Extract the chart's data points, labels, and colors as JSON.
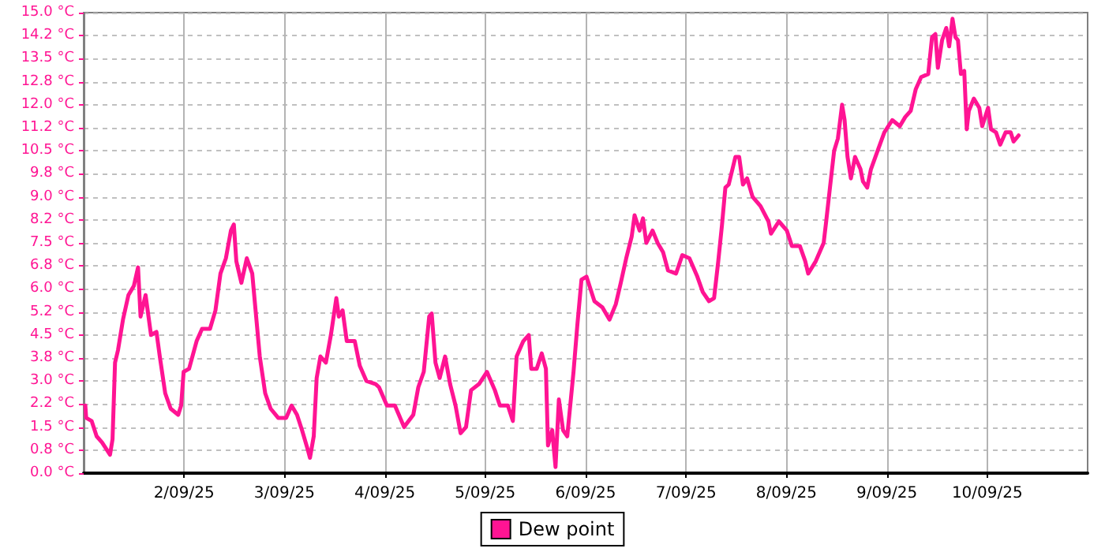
{
  "chart_data": {
    "type": "line",
    "xlim": [
      "--09-01T00:00",
      "--09-11T00:00"
    ],
    "xticks": [
      {
        "value": "--09-02T00:00",
        "label": "2/09/25"
      },
      {
        "value": "--09-03T00:00",
        "label": "3/09/25"
      },
      {
        "value": "--09-04T00:00",
        "label": "4/09/25"
      },
      {
        "value": "--09-05T00:00",
        "label": "5/09/25"
      },
      {
        "value": "--09-06T00:00",
        "label": "6/09/25"
      },
      {
        "value": "--09-07T00:00",
        "label": "7/09/25"
      },
      {
        "value": "--09-08T00:00",
        "label": "8/09/25"
      },
      {
        "value": "--09-09T00:00",
        "label": "9/09/25"
      },
      {
        "value": "--09-10T00:00",
        "label": "10/09/25"
      }
    ],
    "ylim": [
      0,
      15
    ],
    "yticks": [
      {
        "value": 0,
        "label": "0.0 °C"
      },
      {
        "value": 0.75,
        "label": "0.8 °C"
      },
      {
        "value": 1.5,
        "label": "1.5 °C"
      },
      {
        "value": 2.25,
        "label": "2.2 °C"
      },
      {
        "value": 3,
        "label": "3.0 °C"
      },
      {
        "value": 3.75,
        "label": "3.8 °C"
      },
      {
        "value": 4.5,
        "label": "4.5 °C"
      },
      {
        "value": 5.25,
        "label": "5.2 °C"
      },
      {
        "value": 6,
        "label": "6.0 °C"
      },
      {
        "value": 6.75,
        "label": "6.8 °C"
      },
      {
        "value": 7.5,
        "label": "7.5 °C"
      },
      {
        "value": 8.25,
        "label": "8.2 °C"
      },
      {
        "value": 9,
        "label": "9.0 °C"
      },
      {
        "value": 9.75,
        "label": "9.8 °C"
      },
      {
        "value": 10.5,
        "label": "10.5 °C"
      },
      {
        "value": 11.25,
        "label": "11.2 °C"
      },
      {
        "value": 12,
        "label": "12.0 °C"
      },
      {
        "value": 12.75,
        "label": "12.8 °C"
      },
      {
        "value": 13.5,
        "label": "13.5 °C"
      },
      {
        "value": 14.25,
        "label": "14.2 °C"
      },
      {
        "value": 15,
        "label": "15.0 °C"
      }
    ],
    "grid": true,
    "legend": "bottom",
    "marker": "none",
    "line_style": "solid",
    "x": [
      "--09-01T00:24",
      "--09-01T00:36",
      "--09-01T01:54",
      "--09-01T03:06",
      "--09-01T04:24",
      "--09-01T06:18",
      "--09-01T06:54",
      "--09-01T07:30",
      "--09-01T08:12",
      "--09-01T09:24",
      "--09-01T10:42",
      "--09-01T12:00",
      "--09-01T13:00",
      "--09-01T13:36",
      "--09-01T14:48",
      "--09-01T16:06",
      "--09-01T17:24",
      "--09-01T18:12",
      "--09-01T19:30",
      "--09-01T20:48",
      "--09-01T22:36",
      "--09-01T23:18",
      "--09-01T23:54",
      "--09-02T01:12",
      "--09-02T03:00",
      "--09-02T04:18",
      "--09-02T06:12",
      "--09-02T07:30",
      "--09-02T08:42",
      "--09-02T10:00",
      "--09-02T11:12",
      "--09-02T11:54",
      "--09-02T12:30",
      "--09-02T13:42",
      "--09-02T15:00",
      "--09-02T16:18",
      "--09-02T17:06",
      "--09-02T18:06",
      "--09-02T19:24",
      "--09-02T20:42",
      "--09-02T22:30",
      "--09-03T00:24",
      "--09-03T01:42",
      "--09-03T03:00",
      "--09-03T04:12",
      "--09-03T05:30",
      "--09-03T06:06",
      "--09-03T07:00",
      "--09-03T07:42",
      "--09-03T08:36",
      "--09-03T09:54",
      "--09-03T11:06",
      "--09-03T12:24",
      "--09-03T13:00",
      "--09-03T13:54",
      "--09-03T14:54",
      "--09-03T16:48",
      "--09-03T18:00",
      "--09-03T19:36",
      "--09-03T21:48",
      "--09-03T22:36",
      "--09-04T00:30",
      "--09-04T02:24",
      "--09-04T04:36",
      "--09-04T06:48",
      "--09-04T08:00",
      "--09-04T09:18",
      "--09-04T10:36",
      "--09-04T11:12",
      "--09-04T12:06",
      "--09-04T13:06",
      "--09-04T14:24",
      "--09-04T15:36",
      "--09-04T16:54",
      "--09-04T18:06",
      "--09-04T19:24",
      "--09-04T20:36",
      "--09-04T22:30",
      "--09-05T00:24",
      "--09-05T02:18",
      "--09-05T03:30",
      "--09-05T05:24",
      "--09-05T06:36",
      "--09-05T07:30",
      "--09-05T09:06",
      "--09-05T10:24",
      "--09-05T11:00",
      "--09-05T12:18",
      "--09-05T13:30",
      "--09-05T14:30",
      "--09-05T15:00",
      "--09-05T16:00",
      "--09-05T16:48",
      "--09-05T17:36",
      "--09-05T18:36",
      "--09-05T19:36",
      "--09-05T21:06",
      "--09-05T22:00",
      "--09-05T23:00",
      "--09-06T00:12",
      "--09-06T02:06",
      "--09-06T04:00",
      "--09-06T05:42",
      "--09-06T07:12",
      "--09-06T08:24",
      "--09-06T09:42",
      "--09-06T11:00",
      "--09-06T11:42",
      "--09-06T12:54",
      "--09-06T13:42",
      "--09-06T14:30",
      "--09-06T16:00",
      "--09-06T17:12",
      "--09-06T18:30",
      "--09-06T19:42",
      "--09-06T21:36",
      "--09-06T23:06",
      "--09-07T00:48",
      "--09-07T02:42",
      "--09-07T04:00",
      "--09-07T05:30",
      "--09-07T06:42",
      "--09-07T07:42",
      "--09-07T08:36",
      "--09-07T09:24",
      "--09-07T10:12",
      "--09-07T11:48",
      "--09-07T12:42",
      "--09-07T13:36",
      "--09-07T14:36",
      "--09-07T15:54",
      "--09-07T17:48",
      "--09-07T19:42",
      "--09-07T20:18",
      "--09-07T22:12",
      "--09-08T00:06",
      "--09-08T01:18",
      "--09-08T03:12",
      "--09-08T04:30",
      "--09-08T05:12",
      "--09-08T07:00",
      "--09-08T08:54",
      "--09-08T09:30",
      "--09-08T10:24",
      "--09-08T11:24",
      "--09-08T12:18",
      "--09-08T13:18",
      "--09-08T13:54",
      "--09-08T14:36",
      "--09-08T15:24",
      "--09-08T16:24",
      "--09-08T17:42",
      "--09-08T18:18",
      "--09-08T19:18",
      "--09-08T20:12",
      "--09-08T21:48",
      "--09-08T23:24",
      "--09-09T01:18",
      "--09-09T03:06",
      "--09-09T04:24",
      "--09-09T05:42",
      "--09-09T06:54",
      "--09-09T08:12",
      "--09-09T09:54",
      "--09-09T10:48",
      "--09-09T11:36",
      "--09-09T12:12",
      "--09-09T13:12",
      "--09-09T14:12",
      "--09-09T14:54",
      "--09-09T15:42",
      "--09-09T16:24",
      "--09-09T17:00",
      "--09-09T17:42",
      "--09-09T18:30",
      "--09-09T19:06",
      "--09-09T19:36",
      "--09-09T20:48",
      "--09-09T22:06",
      "--09-09T22:48",
      "--09-10T00:12",
      "--09-10T00:54",
      "--09-10T02:06",
      "--09-10T03:06",
      "--09-10T04:24",
      "--09-10T05:36",
      "--09-10T06:18",
      "--09-10T07:30"
    ],
    "series": [
      {
        "name": "Dew point",
        "color": "#ff1493",
        "values": [
          2.2,
          1.8,
          1.7,
          1.2,
          1.0,
          0.6,
          1.1,
          3.6,
          4.0,
          5.0,
          5.8,
          6.1,
          6.7,
          5.1,
          5.8,
          4.5,
          4.6,
          3.8,
          2.6,
          2.1,
          1.9,
          2.2,
          3.3,
          3.4,
          4.3,
          4.7,
          4.7,
          5.3,
          6.5,
          7.0,
          7.9,
          8.1,
          6.9,
          6.2,
          7.0,
          6.5,
          5.3,
          3.8,
          2.6,
          2.1,
          1.8,
          1.8,
          2.2,
          1.9,
          1.4,
          0.8,
          0.5,
          1.2,
          3.1,
          3.8,
          3.6,
          4.5,
          5.7,
          5.1,
          5.3,
          4.3,
          4.3,
          3.5,
          3.0,
          2.9,
          2.8,
          2.2,
          2.2,
          1.5,
          1.9,
          2.8,
          3.3,
          5.1,
          5.2,
          3.6,
          3.1,
          3.8,
          2.9,
          2.2,
          1.3,
          1.5,
          2.7,
          2.9,
          3.3,
          2.7,
          2.2,
          2.2,
          1.7,
          3.8,
          4.3,
          4.5,
          3.4,
          3.4,
          3.9,
          3.4,
          0.9,
          1.4,
          0.2,
          2.4,
          1.4,
          1.2,
          3.3,
          4.8,
          6.3,
          6.4,
          5.6,
          5.4,
          5.0,
          5.5,
          6.2,
          7.0,
          7.7,
          8.4,
          7.9,
          8.3,
          7.5,
          7.9,
          7.5,
          7.2,
          6.6,
          6.5,
          7.1,
          7.0,
          6.4,
          5.9,
          5.6,
          5.7,
          6.9,
          8.1,
          9.3,
          9.4,
          10.3,
          10.3,
          9.4,
          9.6,
          9.0,
          8.7,
          8.2,
          7.8,
          8.2,
          7.9,
          7.4,
          7.4,
          6.9,
          6.5,
          6.9,
          7.5,
          8.2,
          9.3,
          10.5,
          10.9,
          12.0,
          11.5,
          10.3,
          9.6,
          10.3,
          9.9,
          9.5,
          9.3,
          9.9,
          10.5,
          11.1,
          11.5,
          11.3,
          11.6,
          11.8,
          12.5,
          12.9,
          13.0,
          14.2,
          14.3,
          13.2,
          14.1,
          14.5,
          13.9,
          14.8,
          14.2,
          14.1,
          13.0,
          13.1,
          11.2,
          11.8,
          12.2,
          11.9,
          11.3,
          11.9,
          11.2,
          11.1,
          10.7,
          11.1,
          11.1,
          10.8,
          11.0
        ]
      }
    ]
  }
}
